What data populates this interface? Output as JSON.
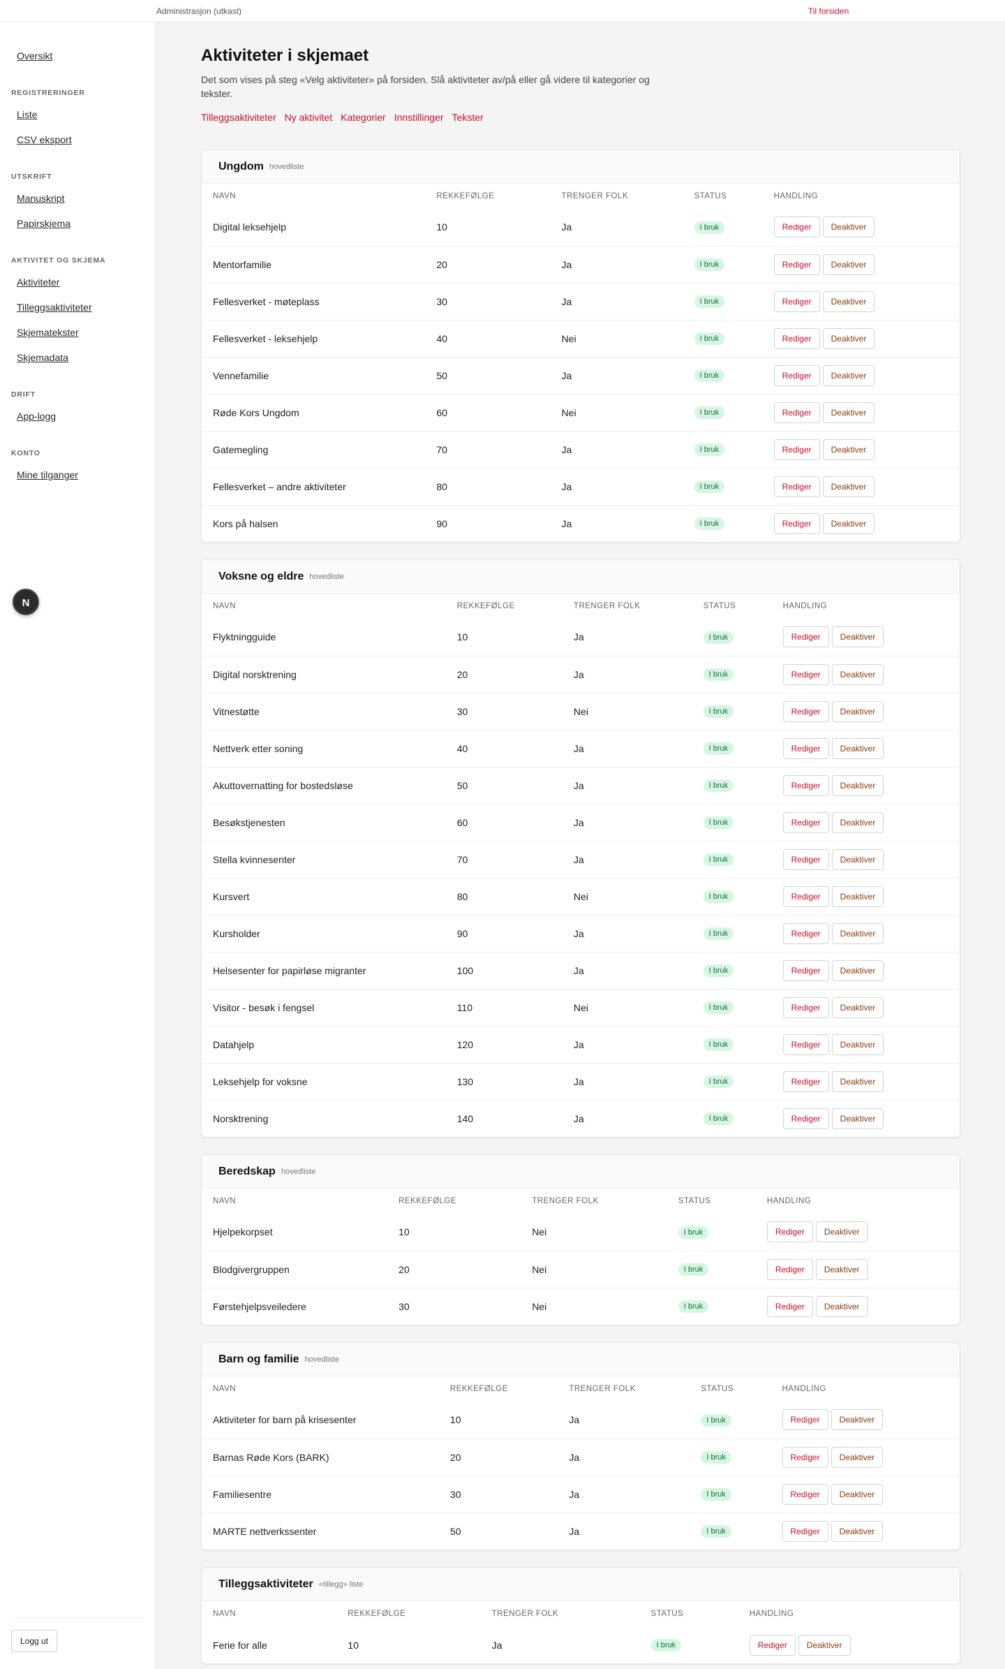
{
  "topbar": {
    "admin_label": "Administrasjon (utkast)",
    "home_link": "Til forsiden"
  },
  "sidebar": {
    "overview": "Oversikt",
    "sections": [
      {
        "title": "Registreringer",
        "items": [
          "Liste",
          "CSV eksport"
        ]
      },
      {
        "title": "Utskrift",
        "items": [
          "Manuskript",
          "Papirskjema"
        ]
      },
      {
        "title": "Aktivitet og skjema",
        "items": [
          "Aktiviteter",
          "Tilleggsaktiviteter",
          "Skjematekster",
          "Skjemadata"
        ]
      },
      {
        "title": "Drift",
        "items": [
          "App-logg"
        ]
      },
      {
        "title": "Konto",
        "items": [
          "Mine tilganger"
        ]
      }
    ],
    "logout": "Logg ut"
  },
  "badge": "N",
  "page": {
    "title": "Aktiviteter i skjemaet",
    "description": "Det som vises på steg «Velg aktiviteter» på forsiden. Slå aktiviteter av/på eller gå videre til kategorier og tekster.",
    "links": [
      "Tilleggsaktiviteter",
      "Ny aktivitet",
      "Kategorier",
      "Innstillinger",
      "Tekster"
    ]
  },
  "table_headers": {
    "name": "Navn",
    "order": "Rekkefølge",
    "needs": "Trenger folk",
    "status": "Status",
    "action": "Handling"
  },
  "button_labels": {
    "edit": "Rediger",
    "deactivate": "Deaktiver"
  },
  "colors": {
    "accent": "#c8102e",
    "status_bg": "#d7f5e3",
    "status_text": "#146c3c"
  },
  "groups": [
    {
      "title": "Ungdom",
      "subtitle": "hovedliste",
      "rows": [
        {
          "name": "Digital leksehjelp",
          "order": "10",
          "needs": "Ja",
          "status": "I bruk"
        },
        {
          "name": "Mentorfamilie",
          "order": "20",
          "needs": "Ja",
          "status": "I bruk"
        },
        {
          "name": "Fellesverket - møteplass",
          "order": "30",
          "needs": "Ja",
          "status": "I bruk"
        },
        {
          "name": "Fellesverket - leksehjelp",
          "order": "40",
          "needs": "Nei",
          "status": "I bruk"
        },
        {
          "name": "Vennefamilie",
          "order": "50",
          "needs": "Ja",
          "status": "I bruk"
        },
        {
          "name": "Røde Kors Ungdom",
          "order": "60",
          "needs": "Nei",
          "status": "I bruk"
        },
        {
          "name": "Gatemegling",
          "order": "70",
          "needs": "Ja",
          "status": "I bruk"
        },
        {
          "name": "Fellesverket – andre aktiviteter",
          "order": "80",
          "needs": "Ja",
          "status": "I bruk"
        },
        {
          "name": "Kors på halsen",
          "order": "90",
          "needs": "Ja",
          "status": "I bruk"
        }
      ]
    },
    {
      "title": "Voksne og eldre",
      "subtitle": "hovedliste",
      "rows": [
        {
          "name": "Flyktningguide",
          "order": "10",
          "needs": "Ja",
          "status": "I bruk"
        },
        {
          "name": "Digital norsktrening",
          "order": "20",
          "needs": "Ja",
          "status": "I bruk"
        },
        {
          "name": "Vitnestøtte",
          "order": "30",
          "needs": "Nei",
          "status": "I bruk"
        },
        {
          "name": "Nettverk etter soning",
          "order": "40",
          "needs": "Ja",
          "status": "I bruk"
        },
        {
          "name": "Akuttovernatting for bostedsløse",
          "order": "50",
          "needs": "Ja",
          "status": "I bruk"
        },
        {
          "name": "Besøkstjenesten",
          "order": "60",
          "needs": "Ja",
          "status": "I bruk"
        },
        {
          "name": "Stella kvinnesenter",
          "order": "70",
          "needs": "Ja",
          "status": "I bruk"
        },
        {
          "name": "Kursvert",
          "order": "80",
          "needs": "Nei",
          "status": "I bruk"
        },
        {
          "name": "Kursholder",
          "order": "90",
          "needs": "Ja",
          "status": "I bruk"
        },
        {
          "name": "Helsesenter for papirløse migranter",
          "order": "100",
          "needs": "Ja",
          "status": "I bruk"
        },
        {
          "name": "Visitor - besøk i fengsel",
          "order": "110",
          "needs": "Nei",
          "status": "I bruk"
        },
        {
          "name": "Datahjelp",
          "order": "120",
          "needs": "Ja",
          "status": "I bruk"
        },
        {
          "name": "Leksehjelp for voksne",
          "order": "130",
          "needs": "Ja",
          "status": "I bruk"
        },
        {
          "name": "Norsktrening",
          "order": "140",
          "needs": "Ja",
          "status": "I bruk"
        }
      ]
    },
    {
      "title": "Beredskap",
      "subtitle": "hovedliste",
      "rows": [
        {
          "name": "Hjelpekorpset",
          "order": "10",
          "needs": "Nei",
          "status": "I bruk"
        },
        {
          "name": "Blodgivergruppen",
          "order": "20",
          "needs": "Nei",
          "status": "I bruk"
        },
        {
          "name": "Førstehjelpsveiledere",
          "order": "30",
          "needs": "Nei",
          "status": "I bruk"
        }
      ]
    },
    {
      "title": "Barn og familie",
      "subtitle": "hovedliste",
      "rows": [
        {
          "name": "Aktiviteter for barn på krisesenter",
          "order": "10",
          "needs": "Ja",
          "status": "I bruk"
        },
        {
          "name": "Barnas Røde Kors (BARK)",
          "order": "20",
          "needs": "Ja",
          "status": "I bruk"
        },
        {
          "name": "Familiesentre",
          "order": "30",
          "needs": "Ja",
          "status": "I bruk"
        },
        {
          "name": "MARTE nettverkssenter",
          "order": "50",
          "needs": "Ja",
          "status": "I bruk"
        }
      ]
    },
    {
      "title": "Tilleggsaktiviteter",
      "subtitle": "«tillegg» liste",
      "rows": [
        {
          "name": "Ferie for alle",
          "order": "10",
          "needs": "Ja",
          "status": "I bruk"
        }
      ]
    }
  ]
}
